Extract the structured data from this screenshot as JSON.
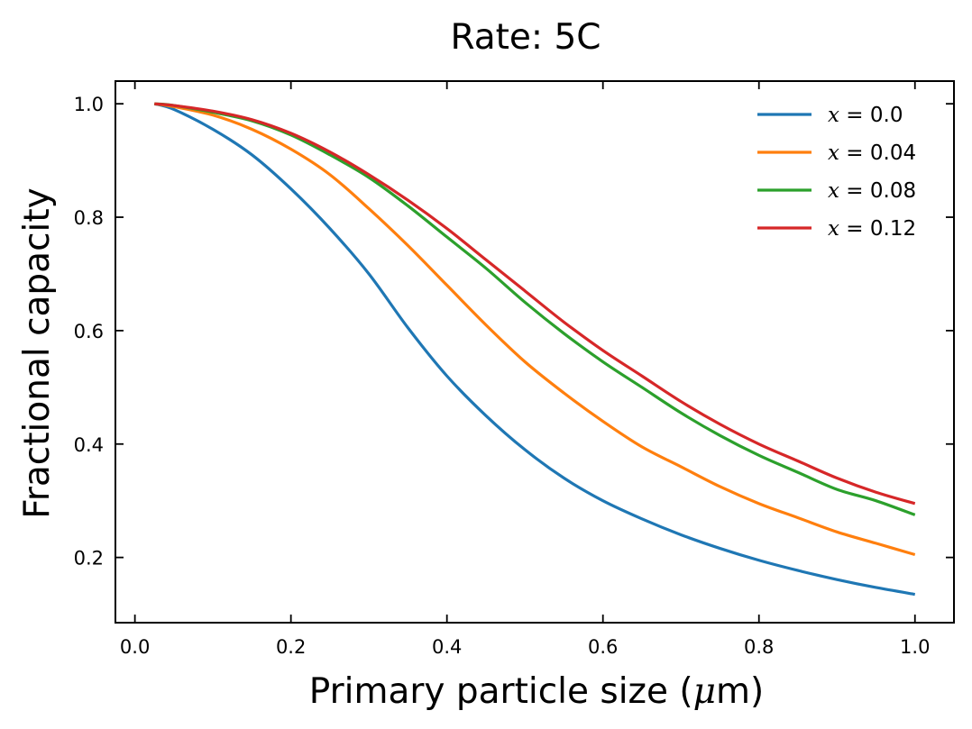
{
  "chart_data": {
    "type": "line",
    "title": "Rate: 5C",
    "xlabel_prefix": "Primary particle size (",
    "xlabel_unit_symbol": "μ",
    "xlabel_suffix": "m)",
    "ylabel": "Fractional capacity",
    "xlim": [
      -0.025,
      1.05
    ],
    "ylim": [
      0.085,
      1.04
    ],
    "x_ticks": [
      0.0,
      0.2,
      0.4,
      0.6,
      0.8,
      1.0
    ],
    "x_tick_labels": [
      "0.0",
      "0.2",
      "0.4",
      "0.6",
      "0.8",
      "1.0"
    ],
    "y_ticks": [
      0.2,
      0.4,
      0.6,
      0.8,
      1.0
    ],
    "y_tick_labels": [
      "0.2",
      "0.4",
      "0.6",
      "0.8",
      "1.0"
    ],
    "grid": false,
    "legend_position": "top-right",
    "x": [
      0.025,
      0.05,
      0.1,
      0.15,
      0.2,
      0.25,
      0.3,
      0.35,
      0.4,
      0.45,
      0.5,
      0.55,
      0.6,
      0.65,
      0.7,
      0.75,
      0.8,
      0.85,
      0.9,
      0.95,
      1.0
    ],
    "series": [
      {
        "name_var": "x",
        "name_eq": " = ",
        "name_val": "0.0",
        "color": "#1f77b4",
        "values": [
          1.0,
          0.99,
          0.955,
          0.91,
          0.85,
          0.78,
          0.7,
          0.605,
          0.52,
          0.45,
          0.39,
          0.34,
          0.3,
          0.268,
          0.24,
          0.216,
          0.195,
          0.177,
          0.161,
          0.147,
          0.135
        ]
      },
      {
        "name_var": "x",
        "name_eq": " = ",
        "name_val": "0.04",
        "color": "#ff7f0e",
        "values": [
          1.0,
          0.995,
          0.98,
          0.955,
          0.92,
          0.875,
          0.815,
          0.75,
          0.68,
          0.61,
          0.545,
          0.49,
          0.44,
          0.395,
          0.36,
          0.325,
          0.295,
          0.27,
          0.245,
          0.225,
          0.205
        ]
      },
      {
        "name_var": "x",
        "name_eq": " = ",
        "name_val": "0.08",
        "color": "#2ca02c",
        "values": [
          1.0,
          0.997,
          0.985,
          0.97,
          0.945,
          0.91,
          0.87,
          0.82,
          0.765,
          0.71,
          0.65,
          0.595,
          0.545,
          0.5,
          0.455,
          0.415,
          0.38,
          0.35,
          0.32,
          0.3,
          0.275
        ]
      },
      {
        "name_var": "x",
        "name_eq": " = ",
        "name_val": "0.12",
        "color": "#d62728",
        "values": [
          1.0,
          0.997,
          0.987,
          0.972,
          0.948,
          0.915,
          0.875,
          0.83,
          0.78,
          0.725,
          0.67,
          0.615,
          0.565,
          0.52,
          0.475,
          0.435,
          0.4,
          0.37,
          0.34,
          0.315,
          0.295
        ]
      }
    ]
  }
}
